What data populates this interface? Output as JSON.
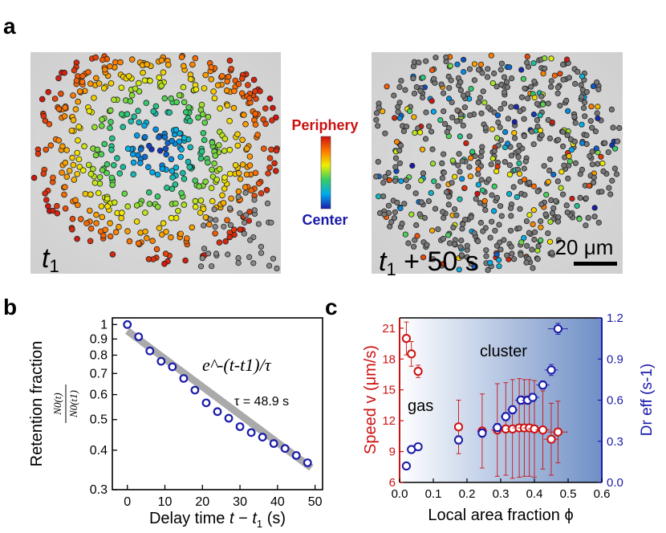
{
  "panel_labels": {
    "a": "a",
    "b": "b",
    "c": "c"
  },
  "panel_a": {
    "left_time_label": "t",
    "left_time_sub": "1",
    "right_time_label": "t",
    "right_time_sub": "1",
    "right_time_suffix": " + 50 s",
    "colorbar_top": "Periphery",
    "colorbar_bottom": "Center",
    "scalebar_label": "20 μm",
    "colors": {
      "periphery": "#cc1111",
      "center": "#1a1aaa"
    }
  },
  "chart_data": [
    {
      "type": "scatter",
      "id": "retention",
      "title": "",
      "xlabel": "Delay time t − t1 (s)",
      "ylabel": "Retention fraction",
      "ylabel_fraction": {
        "numerator": "N0(t)",
        "denominator": "N0(t1)"
      },
      "yscale": "log",
      "xlim": [
        -4,
        52
      ],
      "ylim": [
        0.3,
        1.05
      ],
      "xticks": [
        0,
        10,
        20,
        30,
        40,
        50
      ],
      "yticks": [
        0.3,
        0.4,
        0.5,
        0.6,
        0.7,
        0.8,
        0.9,
        1
      ],
      "ytick_labels": [
        "0.3",
        "0.4",
        "0.5",
        "0.6",
        "0.7",
        "0.8",
        "0.9",
        "1"
      ],
      "x": [
        0,
        3,
        6,
        9,
        12,
        15,
        18,
        21,
        24,
        27,
        30,
        33,
        36,
        39,
        42,
        45,
        48
      ],
      "y": [
        1.0,
        0.915,
        0.825,
        0.765,
        0.735,
        0.675,
        0.62,
        0.565,
        0.53,
        0.505,
        0.475,
        0.455,
        0.44,
        0.42,
        0.405,
        0.385,
        0.365
      ],
      "fit": {
        "label": "exponential fit",
        "tau": 48.9,
        "x": [
          0,
          49
        ],
        "y": [
          0.955,
          0.352
        ]
      },
      "annotations": {
        "formula": "e^-(t-t1)/τ",
        "tau_label": "τ = 48.9 s"
      },
      "marker_color": "#1a1aaa",
      "fit_color": "#aaaaaa"
    },
    {
      "type": "scatter",
      "id": "speed_diffusion",
      "xlabel": "Local area fraction ϕ",
      "ylabel_left": "Speed v (μm/s)",
      "ylabel_right": "Dr eff (s-1)",
      "xlim": [
        0,
        0.6
      ],
      "ylim_left": [
        6,
        22
      ],
      "ylim_right": [
        0,
        1.2
      ],
      "xticks": [
        0.0,
        0.1,
        0.2,
        0.3,
        0.4,
        0.5,
        0.6
      ],
      "xtick_labels": [
        "0.0",
        "0.1",
        "0.2",
        "0.3",
        "0.4",
        "0.5",
        "0.6"
      ],
      "yticks_left": [
        6,
        9,
        12,
        15,
        18,
        21
      ],
      "yticks_right": [
        0.0,
        0.3,
        0.6,
        0.9,
        1.2
      ],
      "ytick_right_labels": [
        "0.0",
        "0.3",
        "0.6",
        "0.9",
        "1.2"
      ],
      "region_labels": {
        "gas": "gas",
        "cluster": "cluster"
      },
      "series": [
        {
          "name": "Speed v",
          "axis": "left",
          "color": "#cc1111",
          "points": [
            {
              "x": 0.02,
              "y": 20.0,
              "yerr": 1.6,
              "xerr": 0.006
            },
            {
              "x": 0.035,
              "y": 18.5,
              "yerr": 1.2,
              "xerr": 0.006
            },
            {
              "x": 0.055,
              "y": 16.8,
              "yerr": 0.6,
              "xerr": 0.006
            },
            {
              "x": 0.175,
              "y": 11.4,
              "yerr": 2.6,
              "xerr": 0.012
            },
            {
              "x": 0.245,
              "y": 11.0,
              "yerr": 3.6,
              "xerr": 0.015
            },
            {
              "x": 0.29,
              "y": 11.1,
              "yerr": 4.5,
              "xerr": 0.018
            },
            {
              "x": 0.315,
              "y": 11.2,
              "yerr": 4.5,
              "xerr": 0.018
            },
            {
              "x": 0.335,
              "y": 11.2,
              "yerr": 4.8,
              "xerr": 0.018
            },
            {
              "x": 0.355,
              "y": 11.3,
              "yerr": 4.8,
              "xerr": 0.02
            },
            {
              "x": 0.37,
              "y": 11.3,
              "yerr": 4.7,
              "xerr": 0.02
            },
            {
              "x": 0.385,
              "y": 11.3,
              "yerr": 4.7,
              "xerr": 0.02
            },
            {
              "x": 0.4,
              "y": 11.2,
              "yerr": 4.7,
              "xerr": 0.02
            },
            {
              "x": 0.425,
              "y": 11.1,
              "yerr": 3.8,
              "xerr": 0.022
            },
            {
              "x": 0.45,
              "y": 10.2,
              "yerr": 3.5,
              "xerr": 0.022
            },
            {
              "x": 0.47,
              "y": 10.9,
              "yerr": 3.0,
              "xerr": 0.03
            }
          ]
        },
        {
          "name": "Dr eff",
          "axis": "right",
          "color": "#1a1aaa",
          "points": [
            {
              "x": 0.02,
              "y": 0.12,
              "yerr": 0.02,
              "xerr": 0.005
            },
            {
              "x": 0.035,
              "y": 0.24,
              "yerr": 0.02,
              "xerr": 0.008
            },
            {
              "x": 0.055,
              "y": 0.26,
              "yerr": 0.02,
              "xerr": 0.008
            },
            {
              "x": 0.175,
              "y": 0.31,
              "yerr": 0.03,
              "xerr": 0.01
            },
            {
              "x": 0.245,
              "y": 0.36,
              "yerr": 0.03,
              "xerr": 0.012
            },
            {
              "x": 0.29,
              "y": 0.4,
              "yerr": 0.03,
              "xerr": 0.015
            },
            {
              "x": 0.315,
              "y": 0.48,
              "yerr": 0.03,
              "xerr": 0.015
            },
            {
              "x": 0.335,
              "y": 0.53,
              "yerr": 0.03,
              "xerr": 0.015
            },
            {
              "x": 0.36,
              "y": 0.6,
              "yerr": 0.03,
              "xerr": 0.018
            },
            {
              "x": 0.38,
              "y": 0.6,
              "yerr": 0.03,
              "xerr": 0.018
            },
            {
              "x": 0.395,
              "y": 0.62,
              "yerr": 0.03,
              "xerr": 0.02
            },
            {
              "x": 0.425,
              "y": 0.71,
              "yerr": 0.03,
              "xerr": 0.02
            },
            {
              "x": 0.45,
              "y": 0.82,
              "yerr": 0.04,
              "xerr": 0.02
            },
            {
              "x": 0.47,
              "y": 1.12,
              "yerr": 0.04,
              "xerr": 0.03
            }
          ]
        }
      ]
    }
  ]
}
